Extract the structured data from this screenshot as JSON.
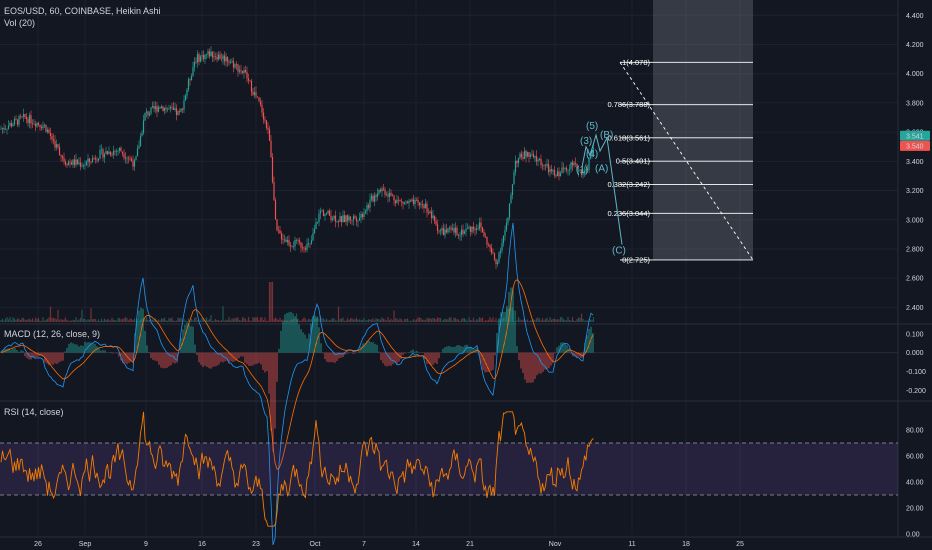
{
  "header": {
    "symbol_line": "EOS/USD, 60, COINBASE, Heikin Ashi",
    "volume_line": "Vol (20)",
    "macd_line": "MACD (12, 26, close, 9)",
    "rsi_line": "RSI (14, close)"
  },
  "colors": {
    "background": "#131722",
    "up": "#26a69a",
    "down": "#ef5350",
    "fib": "#ffffff",
    "wave": "#5fb8c8",
    "rsi": "#f57c00",
    "macd": "#2196f3",
    "signal": "#ff6d00",
    "rsi_band": "#7e57c2"
  },
  "chart_data": [
    {
      "id": "price",
      "type": "candlestick",
      "style": "Heikin Ashi",
      "ylim": [
        2.3,
        4.45
      ],
      "y_ticks": [
        "4.400",
        "4.200",
        "4.000",
        "3.800",
        "3.600",
        "3.400",
        "3.200",
        "3.000",
        "2.800",
        "2.600",
        "2.400"
      ],
      "current_price_labels": [
        "3.541",
        "3.540"
      ],
      "current_prices": [
        3.541,
        3.54
      ],
      "x_ticks": [
        "26",
        "Sep",
        "9",
        "16",
        "23",
        "Oct",
        "7",
        "14",
        "21",
        "Nov",
        "11",
        "18",
        "25"
      ],
      "trend_points": [
        {
          "x": 0,
          "y": 3.62
        },
        {
          "x": 25,
          "y": 3.7
        },
        {
          "x": 45,
          "y": 3.64
        },
        {
          "x": 65,
          "y": 3.4
        },
        {
          "x": 85,
          "y": 3.38
        },
        {
          "x": 100,
          "y": 3.45
        },
        {
          "x": 120,
          "y": 3.48
        },
        {
          "x": 135,
          "y": 3.38
        },
        {
          "x": 145,
          "y": 3.72
        },
        {
          "x": 160,
          "y": 3.78
        },
        {
          "x": 180,
          "y": 3.72
        },
        {
          "x": 195,
          "y": 4.1
        },
        {
          "x": 210,
          "y": 4.14
        },
        {
          "x": 228,
          "y": 4.1
        },
        {
          "x": 245,
          "y": 4.0
        },
        {
          "x": 262,
          "y": 3.75
        },
        {
          "x": 270,
          "y": 3.55
        },
        {
          "x": 276,
          "y": 2.92
        },
        {
          "x": 290,
          "y": 2.84
        },
        {
          "x": 310,
          "y": 2.82
        },
        {
          "x": 320,
          "y": 3.06
        },
        {
          "x": 340,
          "y": 3.0
        },
        {
          "x": 360,
          "y": 3.02
        },
        {
          "x": 380,
          "y": 3.22
        },
        {
          "x": 400,
          "y": 3.12
        },
        {
          "x": 425,
          "y": 3.1
        },
        {
          "x": 440,
          "y": 2.92
        },
        {
          "x": 460,
          "y": 2.92
        },
        {
          "x": 480,
          "y": 2.96
        },
        {
          "x": 496,
          "y": 2.7
        },
        {
          "x": 508,
          "y": 3.0
        },
        {
          "x": 515,
          "y": 3.4
        },
        {
          "x": 525,
          "y": 3.45
        },
        {
          "x": 540,
          "y": 3.4
        },
        {
          "x": 555,
          "y": 3.3
        },
        {
          "x": 570,
          "y": 3.38
        },
        {
          "x": 585,
          "y": 3.32
        },
        {
          "x": 594,
          "y": 3.5
        }
      ],
      "fib_levels": [
        {
          "label": "1(4.078)",
          "ratio": 1,
          "value": 4.078
        },
        {
          "label": "0.786(3.788)",
          "ratio": 0.786,
          "value": 3.788
        },
        {
          "label": "0.618(3.561)",
          "ratio": 0.618,
          "value": 3.561
        },
        {
          "label": "0.5(3.401)",
          "ratio": 0.5,
          "value": 3.401
        },
        {
          "label": "0.382(3.242)",
          "ratio": 0.382,
          "value": 3.242
        },
        {
          "label": "0.236(3.044)",
          "ratio": 0.236,
          "value": 3.044
        },
        {
          "label": "0(2.725)",
          "ratio": 0,
          "value": 2.725
        }
      ],
      "wave_labels": [
        {
          "text": "(5)",
          "y": 3.62
        },
        {
          "text": "(3)",
          "y": 3.52
        },
        {
          "text": "(4)",
          "y": 3.43
        },
        {
          "text": "(B)",
          "y": 3.56
        },
        {
          "text": "(1)",
          "y": 3.32
        },
        {
          "text": "(A)",
          "y": 3.33
        },
        {
          "text": "(C)",
          "y": 2.77
        }
      ]
    },
    {
      "id": "macd",
      "type": "line",
      "title": "MACD (12, 26, close, 9)",
      "ylim": [
        -0.24,
        0.12
      ],
      "y_ticks": [
        "0.100",
        "0.000",
        "-0.100",
        "-0.200"
      ]
    },
    {
      "id": "rsi",
      "type": "line",
      "title": "RSI (14, close)",
      "ylim": [
        0,
        100
      ],
      "band": [
        30,
        70
      ],
      "y_ticks": [
        "80.00",
        "60.00",
        "40.00",
        "20.00",
        "0.00"
      ]
    }
  ]
}
